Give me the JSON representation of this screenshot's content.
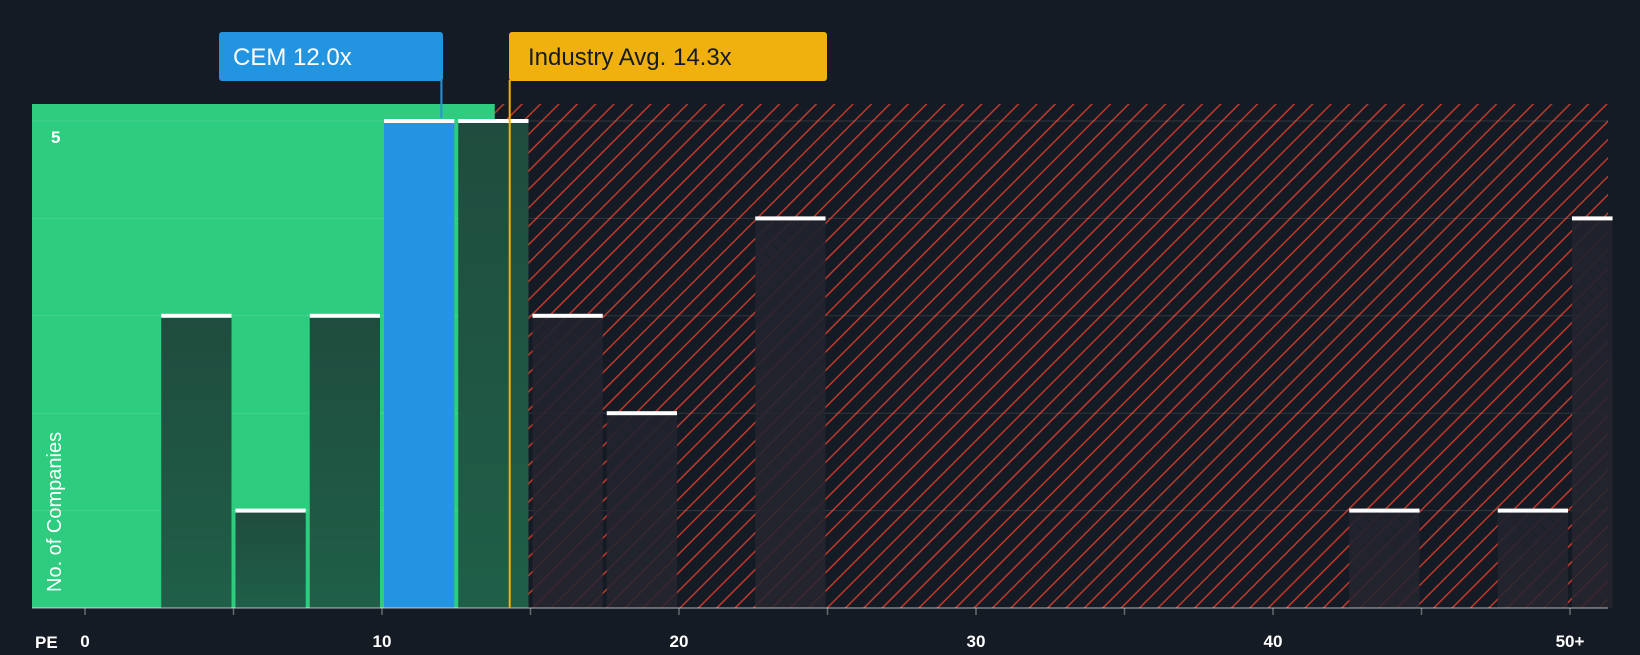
{
  "chart_data": {
    "type": "bar",
    "title": "",
    "xlabel": "PE",
    "ylabel": "No. of Companies",
    "xlim": [
      0,
      51.5
    ],
    "ylim": [
      0,
      5
    ],
    "x_ticks": [
      {
        "value": 0,
        "label": "0"
      },
      {
        "value": 10,
        "label": "10"
      },
      {
        "value": 20,
        "label": "20"
      },
      {
        "value": 30,
        "label": "30"
      },
      {
        "value": 40,
        "label": "40"
      },
      {
        "value": 50,
        "label": "50+"
      }
    ],
    "y_tick_labels": [
      {
        "value": 5,
        "label": "5"
      }
    ],
    "bin_width": 2.5,
    "bins": [
      {
        "start": 2.5,
        "end": 5.0,
        "count": 3
      },
      {
        "start": 5.0,
        "end": 7.5,
        "count": 1
      },
      {
        "start": 7.5,
        "end": 10.0,
        "count": 3
      },
      {
        "start": 10.0,
        "end": 12.5,
        "count": 5,
        "highlight": true
      },
      {
        "start": 12.5,
        "end": 15.0,
        "count": 5
      },
      {
        "start": 15.0,
        "end": 17.5,
        "count": 3
      },
      {
        "start": 17.5,
        "end": 20.0,
        "count": 2
      },
      {
        "start": 22.5,
        "end": 25.0,
        "count": 4
      },
      {
        "start": 42.5,
        "end": 45.0,
        "count": 1
      },
      {
        "start": 47.5,
        "end": 50.0,
        "count": 1
      },
      {
        "start": 50.0,
        "end": 51.5,
        "count": 4
      }
    ],
    "fair_zone_end": 13.8,
    "company": {
      "label": "CEM 12.0x",
      "value": 12.0
    },
    "industry": {
      "label": "Industry Avg. 14.3x",
      "value": 14.3
    },
    "colors": {
      "background": "#151b24",
      "good_zone": "#2ecc7e",
      "bad_zone": "#c0392b",
      "company": "#2394e0",
      "industry": "#f0b10f",
      "bar_dark": "#1f4c3e",
      "bar_muted": "#20222e",
      "cap": "#ffffff"
    }
  }
}
